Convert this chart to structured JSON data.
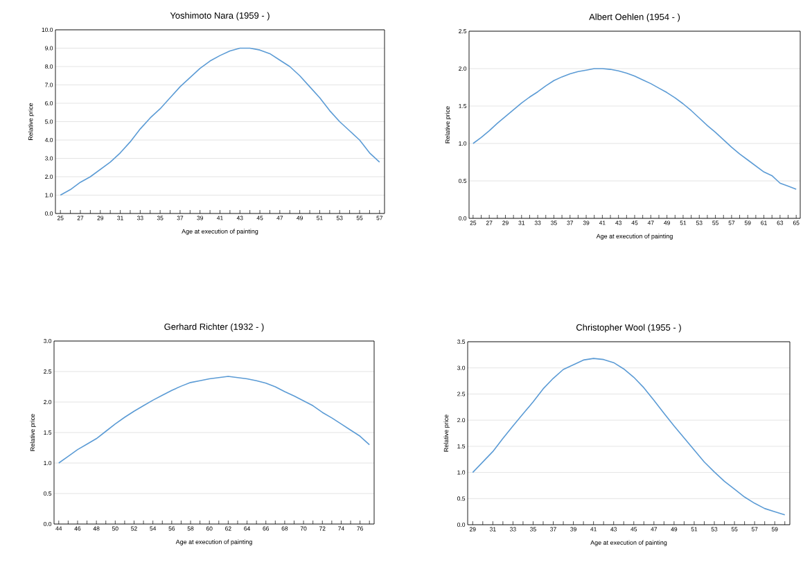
{
  "chart_data": [
    {
      "type": "line",
      "title": "Yoshimoto Nara (1959 - )",
      "xlabel": "Age at execution of painting",
      "ylabel": "Relative price",
      "color": "#5b9bd5",
      "grid": "y",
      "categories": [
        "25",
        null,
        "27",
        null,
        "29",
        null,
        "31",
        null,
        "33",
        null,
        "35",
        null,
        "37",
        null,
        "39",
        null,
        "41",
        null,
        "43",
        null,
        "45",
        null,
        "47",
        null,
        "49",
        null,
        "51",
        null,
        "53",
        null,
        "55",
        null,
        "57"
      ],
      "values": [
        1.0,
        1.3,
        1.7,
        2.0,
        2.4,
        2.8,
        3.3,
        3.9,
        4.6,
        5.2,
        5.7,
        6.3,
        6.9,
        7.4,
        7.9,
        8.3,
        8.6,
        8.85,
        9.0,
        9.0,
        8.9,
        8.7,
        8.35,
        8.0,
        7.5,
        6.9,
        6.3,
        5.6,
        5.0,
        4.5,
        4.0,
        3.3,
        2.8
      ],
      "ylim": [
        0,
        10
      ],
      "yticks": [
        {
          "value": 0,
          "label": "0.0"
        },
        {
          "value": 1,
          "label": "1.0"
        },
        {
          "value": 2,
          "label": "2.0"
        },
        {
          "value": 3,
          "label": "3.0"
        },
        {
          "value": 4,
          "label": "4.0"
        },
        {
          "value": 5,
          "label": "5.0"
        },
        {
          "value": 6,
          "label": "6.0"
        },
        {
          "value": 7,
          "label": "7.0"
        },
        {
          "value": 8,
          "label": "8.0"
        },
        {
          "value": 9,
          "label": "9.0"
        },
        {
          "value": 10,
          "label": "10.0"
        }
      ]
    },
    {
      "type": "line",
      "title": "Albert Oehlen (1954 - )",
      "xlabel": "Age at execution of painting",
      "ylabel": "Relative price",
      "color": "#5b9bd5",
      "grid": "y",
      "categories": [
        "25",
        null,
        "27",
        null,
        "29",
        null,
        "31",
        null,
        "33",
        null,
        "35",
        null,
        "37",
        null,
        "39",
        null,
        "41",
        null,
        "43",
        null,
        "45",
        null,
        "47",
        null,
        "49",
        null,
        "51",
        null,
        "53",
        null,
        "55",
        null,
        "57",
        null,
        "59",
        null,
        "61",
        null,
        "63",
        null,
        "65"
      ],
      "values": [
        1.0,
        1.08,
        1.17,
        1.27,
        1.36,
        1.45,
        1.54,
        1.62,
        1.69,
        1.77,
        1.84,
        1.89,
        1.93,
        1.96,
        1.98,
        2.0,
        2.0,
        1.99,
        1.97,
        1.94,
        1.9,
        1.85,
        1.8,
        1.74,
        1.68,
        1.61,
        1.53,
        1.44,
        1.34,
        1.24,
        1.15,
        1.05,
        0.95,
        0.86,
        0.78,
        0.7,
        0.62,
        0.57,
        0.47,
        0.43,
        0.39
      ],
      "ylim": [
        0,
        2.5
      ],
      "yticks": [
        {
          "value": 0,
          "label": "0.0"
        },
        0.5,
        {
          "value": 1,
          "label": "1.0"
        },
        1.5,
        {
          "value": 2,
          "label": "2.0"
        },
        2.5
      ]
    },
    {
      "type": "line",
      "title": "Gerhard Richter (1932 - )",
      "xlabel": "Age at execution of painting",
      "ylabel": "Relative price",
      "color": "#5b9bd5",
      "grid": "y",
      "categories": [
        "44",
        null,
        "46",
        null,
        "48",
        null,
        "50",
        null,
        "52",
        null,
        "54",
        null,
        "56",
        null,
        "58",
        null,
        "60",
        null,
        "62",
        null,
        "64",
        null,
        "66",
        null,
        "68",
        null,
        "70",
        null,
        "72",
        null,
        "74",
        null,
        "76",
        null
      ],
      "values": [
        1.0,
        1.11,
        1.22,
        1.31,
        1.4,
        1.52,
        1.64,
        1.75,
        1.85,
        1.94,
        2.03,
        2.11,
        2.19,
        2.26,
        2.32,
        2.35,
        2.38,
        2.4,
        2.42,
        2.4,
        2.38,
        2.35,
        2.31,
        2.25,
        2.17,
        2.1,
        2.02,
        1.94,
        1.83,
        1.74,
        1.64,
        1.54,
        1.44,
        1.3
      ],
      "ylim": [
        0,
        3
      ],
      "yticks": [
        {
          "value": 0,
          "label": "0.0"
        },
        0.5,
        {
          "value": 1,
          "label": "1.0"
        },
        1.5,
        {
          "value": 2,
          "label": "2.0"
        },
        2.5,
        {
          "value": 3,
          "label": "3.0"
        }
      ]
    },
    {
      "type": "line",
      "title": "Christopher Wool (1955 - )",
      "xlabel": "Age at execution of painting",
      "ylabel": "Relative price",
      "color": "#5b9bd5",
      "grid": "y",
      "categories": [
        "29",
        null,
        "31",
        null,
        "33",
        null,
        "35",
        null,
        "37",
        null,
        "39",
        null,
        "41",
        null,
        "43",
        null,
        "45",
        null,
        "47",
        null,
        "49",
        null,
        "51",
        null,
        "53",
        null,
        "55",
        null,
        "57",
        null,
        "59",
        null
      ],
      "values": [
        1.0,
        1.2,
        1.4,
        1.65,
        1.89,
        2.12,
        2.35,
        2.6,
        2.8,
        2.97,
        3.06,
        3.15,
        3.18,
        3.16,
        3.1,
        2.98,
        2.82,
        2.62,
        2.38,
        2.13,
        1.89,
        1.66,
        1.43,
        1.2,
        1.01,
        0.83,
        0.68,
        0.53,
        0.41,
        0.31,
        0.25,
        0.19
      ],
      "ylim": [
        0,
        3.5
      ],
      "yticks": [
        {
          "value": 0,
          "label": "0.0"
        },
        0.5,
        {
          "value": 1,
          "label": "1.0"
        },
        1.5,
        {
          "value": 2,
          "label": "2.0"
        },
        2.5,
        {
          "value": 3,
          "label": "3.0"
        },
        3.5
      ]
    }
  ]
}
